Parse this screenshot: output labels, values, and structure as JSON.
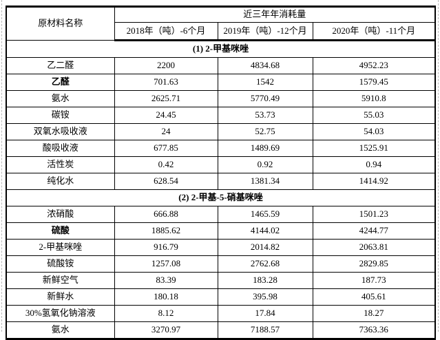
{
  "table": {
    "header": {
      "material_col": "原材料名称",
      "consumption_header": "近三年年消耗量",
      "year_columns": [
        "2018年（吨）-6个月",
        "2019年（吨）-12个月",
        "2020年（吨）-11个月"
      ]
    },
    "sections": [
      {
        "title": "(1) 2-甲基咪唑",
        "rows": [
          {
            "name": "乙二醛",
            "bold": false,
            "values": [
              "2200",
              "4834.68",
              "4952.23"
            ]
          },
          {
            "name": "乙醛",
            "bold": true,
            "values": [
              "701.63",
              "1542",
              "1579.45"
            ]
          },
          {
            "name": "氨水",
            "bold": false,
            "values": [
              "2625.71",
              "5770.49",
              "5910.8"
            ]
          },
          {
            "name": "碳铵",
            "bold": false,
            "values": [
              "24.45",
              "53.73",
              "55.03"
            ]
          },
          {
            "name": "双氧水吸收液",
            "bold": false,
            "values": [
              "24",
              "52.75",
              "54.03"
            ]
          },
          {
            "name": "酸吸收液",
            "bold": false,
            "values": [
              "677.85",
              "1489.69",
              "1525.91"
            ]
          },
          {
            "name": "活性炭",
            "bold": false,
            "values": [
              "0.42",
              "0.92",
              "0.94"
            ]
          },
          {
            "name": "纯化水",
            "bold": false,
            "values": [
              "628.54",
              "1381.34",
              "1414.92"
            ]
          }
        ]
      },
      {
        "title": "(2) 2-甲基-5-硝基咪唑",
        "rows": [
          {
            "name": "浓硝酸",
            "bold": false,
            "values": [
              "666.88",
              "1465.59",
              "1501.23"
            ]
          },
          {
            "name": "硫酸",
            "bold": true,
            "values": [
              "1885.62",
              "4144.02",
              "4244.77"
            ]
          },
          {
            "name": "2-甲基咪唑",
            "bold": false,
            "values": [
              "916.79",
              "2014.82",
              "2063.81"
            ]
          },
          {
            "name": "硫酸铵",
            "bold": false,
            "values": [
              "1257.08",
              "2762.68",
              "2829.85"
            ]
          },
          {
            "name": "新鲜空气",
            "bold": false,
            "values": [
              "83.39",
              "183.28",
              "187.73"
            ]
          },
          {
            "name": "新鲜水",
            "bold": false,
            "values": [
              "180.18",
              "395.98",
              "405.61"
            ]
          },
          {
            "name": "30%氢氧化钠溶液",
            "bold": false,
            "values": [
              "8.12",
              "17.84",
              "18.27"
            ]
          },
          {
            "name": "氨水",
            "bold": false,
            "values": [
              "3270.97",
              "7188.57",
              "7363.36"
            ]
          }
        ]
      }
    ],
    "colors": {
      "border": "#000000",
      "gridline_dash": "#b8b8b8",
      "background": "#ffffff",
      "text": "#000000"
    }
  }
}
